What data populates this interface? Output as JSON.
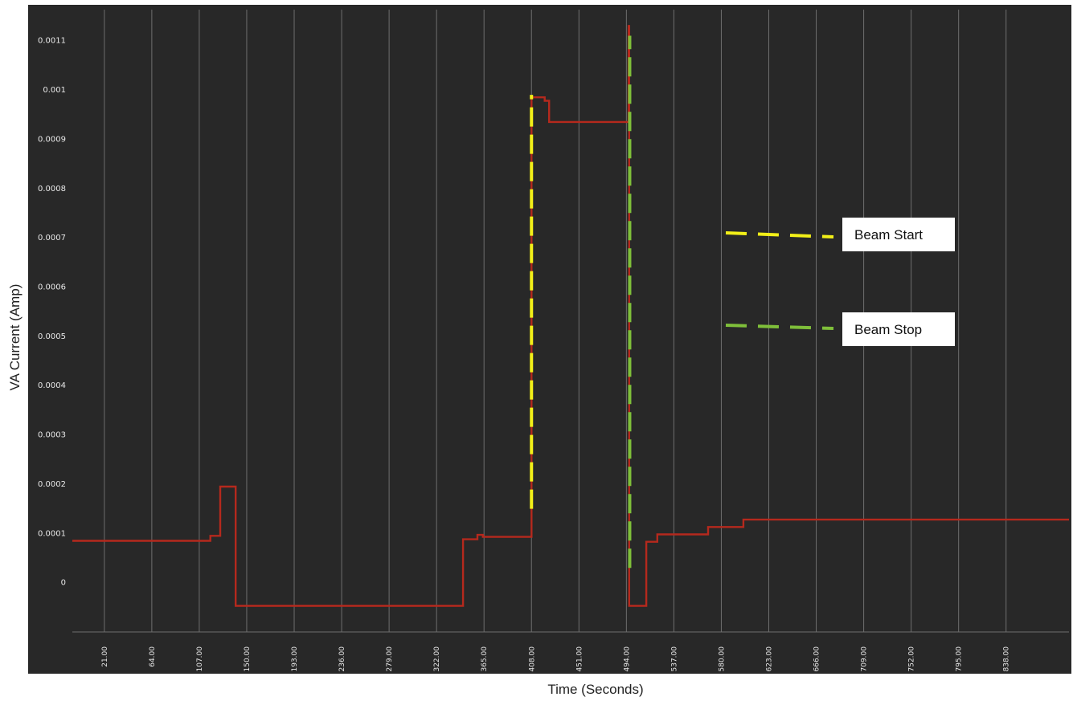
{
  "chart_data": {
    "type": "line",
    "title": "",
    "xlabel": "Time (Seconds)",
    "ylabel": "VA Current (Amp)",
    "x_ticks": [
      "21.00",
      "64.00",
      "107.00",
      "150.00",
      "193.00",
      "236.00",
      "279.00",
      "322.00",
      "365.00",
      "408.00",
      "451.00",
      "494.00",
      "537.00",
      "580.00",
      "623.00",
      "666.00",
      "709.00",
      "752.00",
      "795.00",
      "838.00"
    ],
    "x_tick_values": [
      21,
      64,
      107,
      150,
      193,
      236,
      279,
      322,
      365,
      408,
      451,
      494,
      537,
      580,
      623,
      666,
      709,
      752,
      795,
      838
    ],
    "y_ticks": [
      "0",
      "0.0001",
      "0.0002",
      "0.0003",
      "0.0004",
      "0.0005",
      "0.0006",
      "0.0007",
      "0.0008",
      "0.0009",
      "0.001",
      "0.0011"
    ],
    "y_tick_values": [
      0,
      0.0001,
      0.0002,
      0.0003,
      0.0004,
      0.0005,
      0.0006,
      0.0007,
      0.0008,
      0.0009,
      0.001,
      0.0011
    ],
    "xlim": [
      -8,
      895
    ],
    "ylim": [
      -0.0001,
      0.00115
    ],
    "grid": "vertical",
    "series": [
      {
        "name": "",
        "color": "#b5291d",
        "x": [
          -8,
          117,
          117,
          126,
          126,
          140,
          140,
          346,
          346,
          359,
          359,
          364,
          364,
          408,
          408,
          420,
          420,
          424,
          424,
          496,
          496,
          496.5,
          496.5,
          512,
          512,
          522,
          522,
          568,
          568,
          600,
          600,
          660,
          660,
          895
        ],
        "y": [
          8.5e-05,
          8.5e-05,
          9.5e-05,
          9.5e-05,
          0.000195,
          0.000195,
          -4.7e-05,
          -4.7e-05,
          8.8e-05,
          8.8e-05,
          9.7e-05,
          9.7e-05,
          9.3e-05,
          9.3e-05,
          0.000985,
          0.000985,
          0.000978,
          0.000978,
          0.000935,
          0.000935,
          0.00113,
          0.00113,
          -4.7e-05,
          -4.7e-05,
          8.3e-05,
          8.3e-05,
          9.8e-05,
          9.8e-05,
          0.000113,
          0.000113,
          0.000128,
          0.000128,
          0.000128,
          0.000128
        ]
      }
    ],
    "markers": [
      {
        "name": "Beam Start",
        "color": "#f2ef18",
        "x": 408,
        "y_from": 0.00015,
        "y_to": 0.00099
      },
      {
        "name": "Beam Stop",
        "color": "#7fbf3a",
        "x": 497,
        "y_from": 3e-05,
        "y_to": 0.00111
      }
    ],
    "legend": {
      "position": "right",
      "items": [
        {
          "label": "Beam Start",
          "color": "#f2ef18"
        },
        {
          "label": "Beam Stop",
          "color": "#7fbf3a"
        }
      ]
    },
    "colors": {
      "background": "#282828",
      "grid": "#6e6e6e",
      "tick_text": "#e8e8e8"
    }
  }
}
